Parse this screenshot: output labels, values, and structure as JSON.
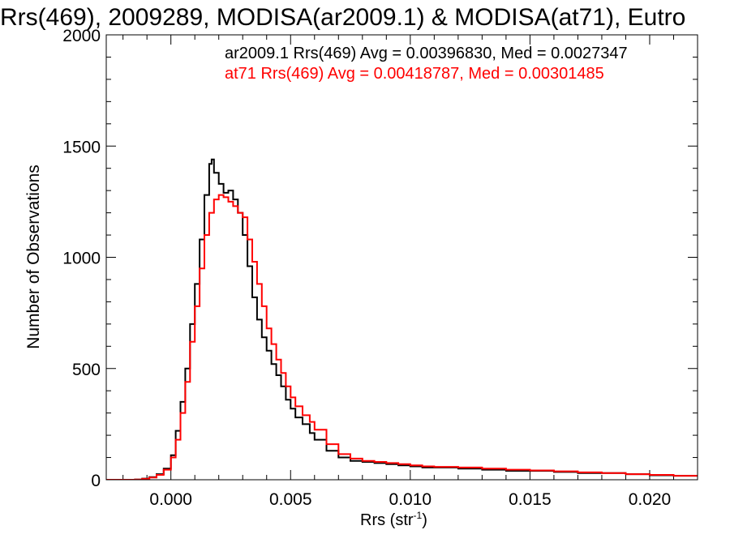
{
  "chart_data": {
    "type": "line",
    "title": "Rrs(469), 2009289, MODISA(ar2009.1) & MODISA(at71), Eutro",
    "xlabel": "Rrs (str",
    "xlabel_sup": "-1",
    "xlabel_close": ")",
    "ylabel": "Number of Observations",
    "xlim": [
      -0.0027,
      0.022
    ],
    "ylim": [
      0,
      2000
    ],
    "xticks": [
      0.0,
      0.005,
      0.01,
      0.015,
      0.02
    ],
    "xtick_labels": [
      "0.000",
      "0.005",
      "0.010",
      "0.015",
      "0.020"
    ],
    "yticks": [
      0,
      500,
      1000,
      1500,
      2000
    ],
    "ytick_labels": [
      "0",
      "500",
      "1000",
      "1500",
      "2000"
    ],
    "line_style": "step",
    "grid": false,
    "legend_position": "top-right",
    "series": [
      {
        "name": "ar2009.1 Rrs(469) Avg = 0.00396830, Med = 0.0027347",
        "color": "#000000",
        "points": [
          [
            -0.0027,
            0
          ],
          [
            -0.002,
            0
          ],
          [
            -0.0015,
            1
          ],
          [
            -0.0012,
            5
          ],
          [
            -0.0009,
            12
          ],
          [
            -0.0006,
            25
          ],
          [
            -0.0003,
            50
          ],
          [
            0.0,
            110
          ],
          [
            0.0002,
            220
          ],
          [
            0.0004,
            350
          ],
          [
            0.0006,
            500
          ],
          [
            0.0008,
            700
          ],
          [
            0.001,
            880
          ],
          [
            0.0012,
            1080
          ],
          [
            0.0014,
            1280
          ],
          [
            0.0016,
            1420
          ],
          [
            0.0017,
            1440
          ],
          [
            0.0018,
            1380
          ],
          [
            0.002,
            1330
          ],
          [
            0.0022,
            1290
          ],
          [
            0.0024,
            1300
          ],
          [
            0.0026,
            1260
          ],
          [
            0.0028,
            1200
          ],
          [
            0.003,
            1100
          ],
          [
            0.0032,
            960
          ],
          [
            0.0034,
            820
          ],
          [
            0.0036,
            720
          ],
          [
            0.0038,
            640
          ],
          [
            0.004,
            580
          ],
          [
            0.0042,
            520
          ],
          [
            0.0044,
            470
          ],
          [
            0.0046,
            420
          ],
          [
            0.0048,
            360
          ],
          [
            0.005,
            320
          ],
          [
            0.0052,
            280
          ],
          [
            0.0055,
            250
          ],
          [
            0.0058,
            210
          ],
          [
            0.006,
            180
          ],
          [
            0.0065,
            130
          ],
          [
            0.007,
            100
          ],
          [
            0.0075,
            85
          ],
          [
            0.008,
            80
          ],
          [
            0.0085,
            75
          ],
          [
            0.009,
            70
          ],
          [
            0.0095,
            65
          ],
          [
            0.01,
            60
          ],
          [
            0.0105,
            55
          ],
          [
            0.011,
            55
          ],
          [
            0.012,
            50
          ],
          [
            0.013,
            45
          ],
          [
            0.014,
            40
          ],
          [
            0.015,
            40
          ],
          [
            0.016,
            35
          ],
          [
            0.017,
            30
          ],
          [
            0.018,
            30
          ],
          [
            0.019,
            25
          ],
          [
            0.02,
            20
          ],
          [
            0.021,
            18
          ],
          [
            0.022,
            15
          ]
        ]
      },
      {
        "name": "at71 Rrs(469) Avg = 0.00418787, Med = 0.00301485",
        "color": "#ff0000",
        "points": [
          [
            -0.0027,
            0
          ],
          [
            -0.002,
            0
          ],
          [
            -0.0015,
            1
          ],
          [
            -0.0012,
            4
          ],
          [
            -0.0009,
            10
          ],
          [
            -0.0006,
            22
          ],
          [
            -0.0003,
            45
          ],
          [
            0.0,
            100
          ],
          [
            0.0002,
            180
          ],
          [
            0.0004,
            300
          ],
          [
            0.0006,
            440
          ],
          [
            0.0008,
            620
          ],
          [
            0.001,
            780
          ],
          [
            0.0012,
            950
          ],
          [
            0.0014,
            1100
          ],
          [
            0.0016,
            1200
          ],
          [
            0.0018,
            1260
          ],
          [
            0.002,
            1280
          ],
          [
            0.0022,
            1270
          ],
          [
            0.0024,
            1250
          ],
          [
            0.0026,
            1230
          ],
          [
            0.0028,
            1200
          ],
          [
            0.003,
            1180
          ],
          [
            0.0032,
            1080
          ],
          [
            0.0034,
            980
          ],
          [
            0.0036,
            880
          ],
          [
            0.0038,
            780
          ],
          [
            0.004,
            680
          ],
          [
            0.0042,
            610
          ],
          [
            0.0044,
            540
          ],
          [
            0.0046,
            480
          ],
          [
            0.0048,
            420
          ],
          [
            0.005,
            370
          ],
          [
            0.0052,
            330
          ],
          [
            0.0055,
            290
          ],
          [
            0.0058,
            260
          ],
          [
            0.006,
            225
          ],
          [
            0.0065,
            160
          ],
          [
            0.007,
            115
          ],
          [
            0.0075,
            95
          ],
          [
            0.008,
            85
          ],
          [
            0.0085,
            80
          ],
          [
            0.009,
            75
          ],
          [
            0.0095,
            70
          ],
          [
            0.01,
            65
          ],
          [
            0.0105,
            60
          ],
          [
            0.011,
            58
          ],
          [
            0.012,
            55
          ],
          [
            0.013,
            50
          ],
          [
            0.014,
            45
          ],
          [
            0.015,
            42
          ],
          [
            0.016,
            38
          ],
          [
            0.017,
            33
          ],
          [
            0.018,
            30
          ],
          [
            0.019,
            25
          ],
          [
            0.02,
            22
          ],
          [
            0.021,
            18
          ],
          [
            0.022,
            15
          ]
        ]
      }
    ]
  }
}
